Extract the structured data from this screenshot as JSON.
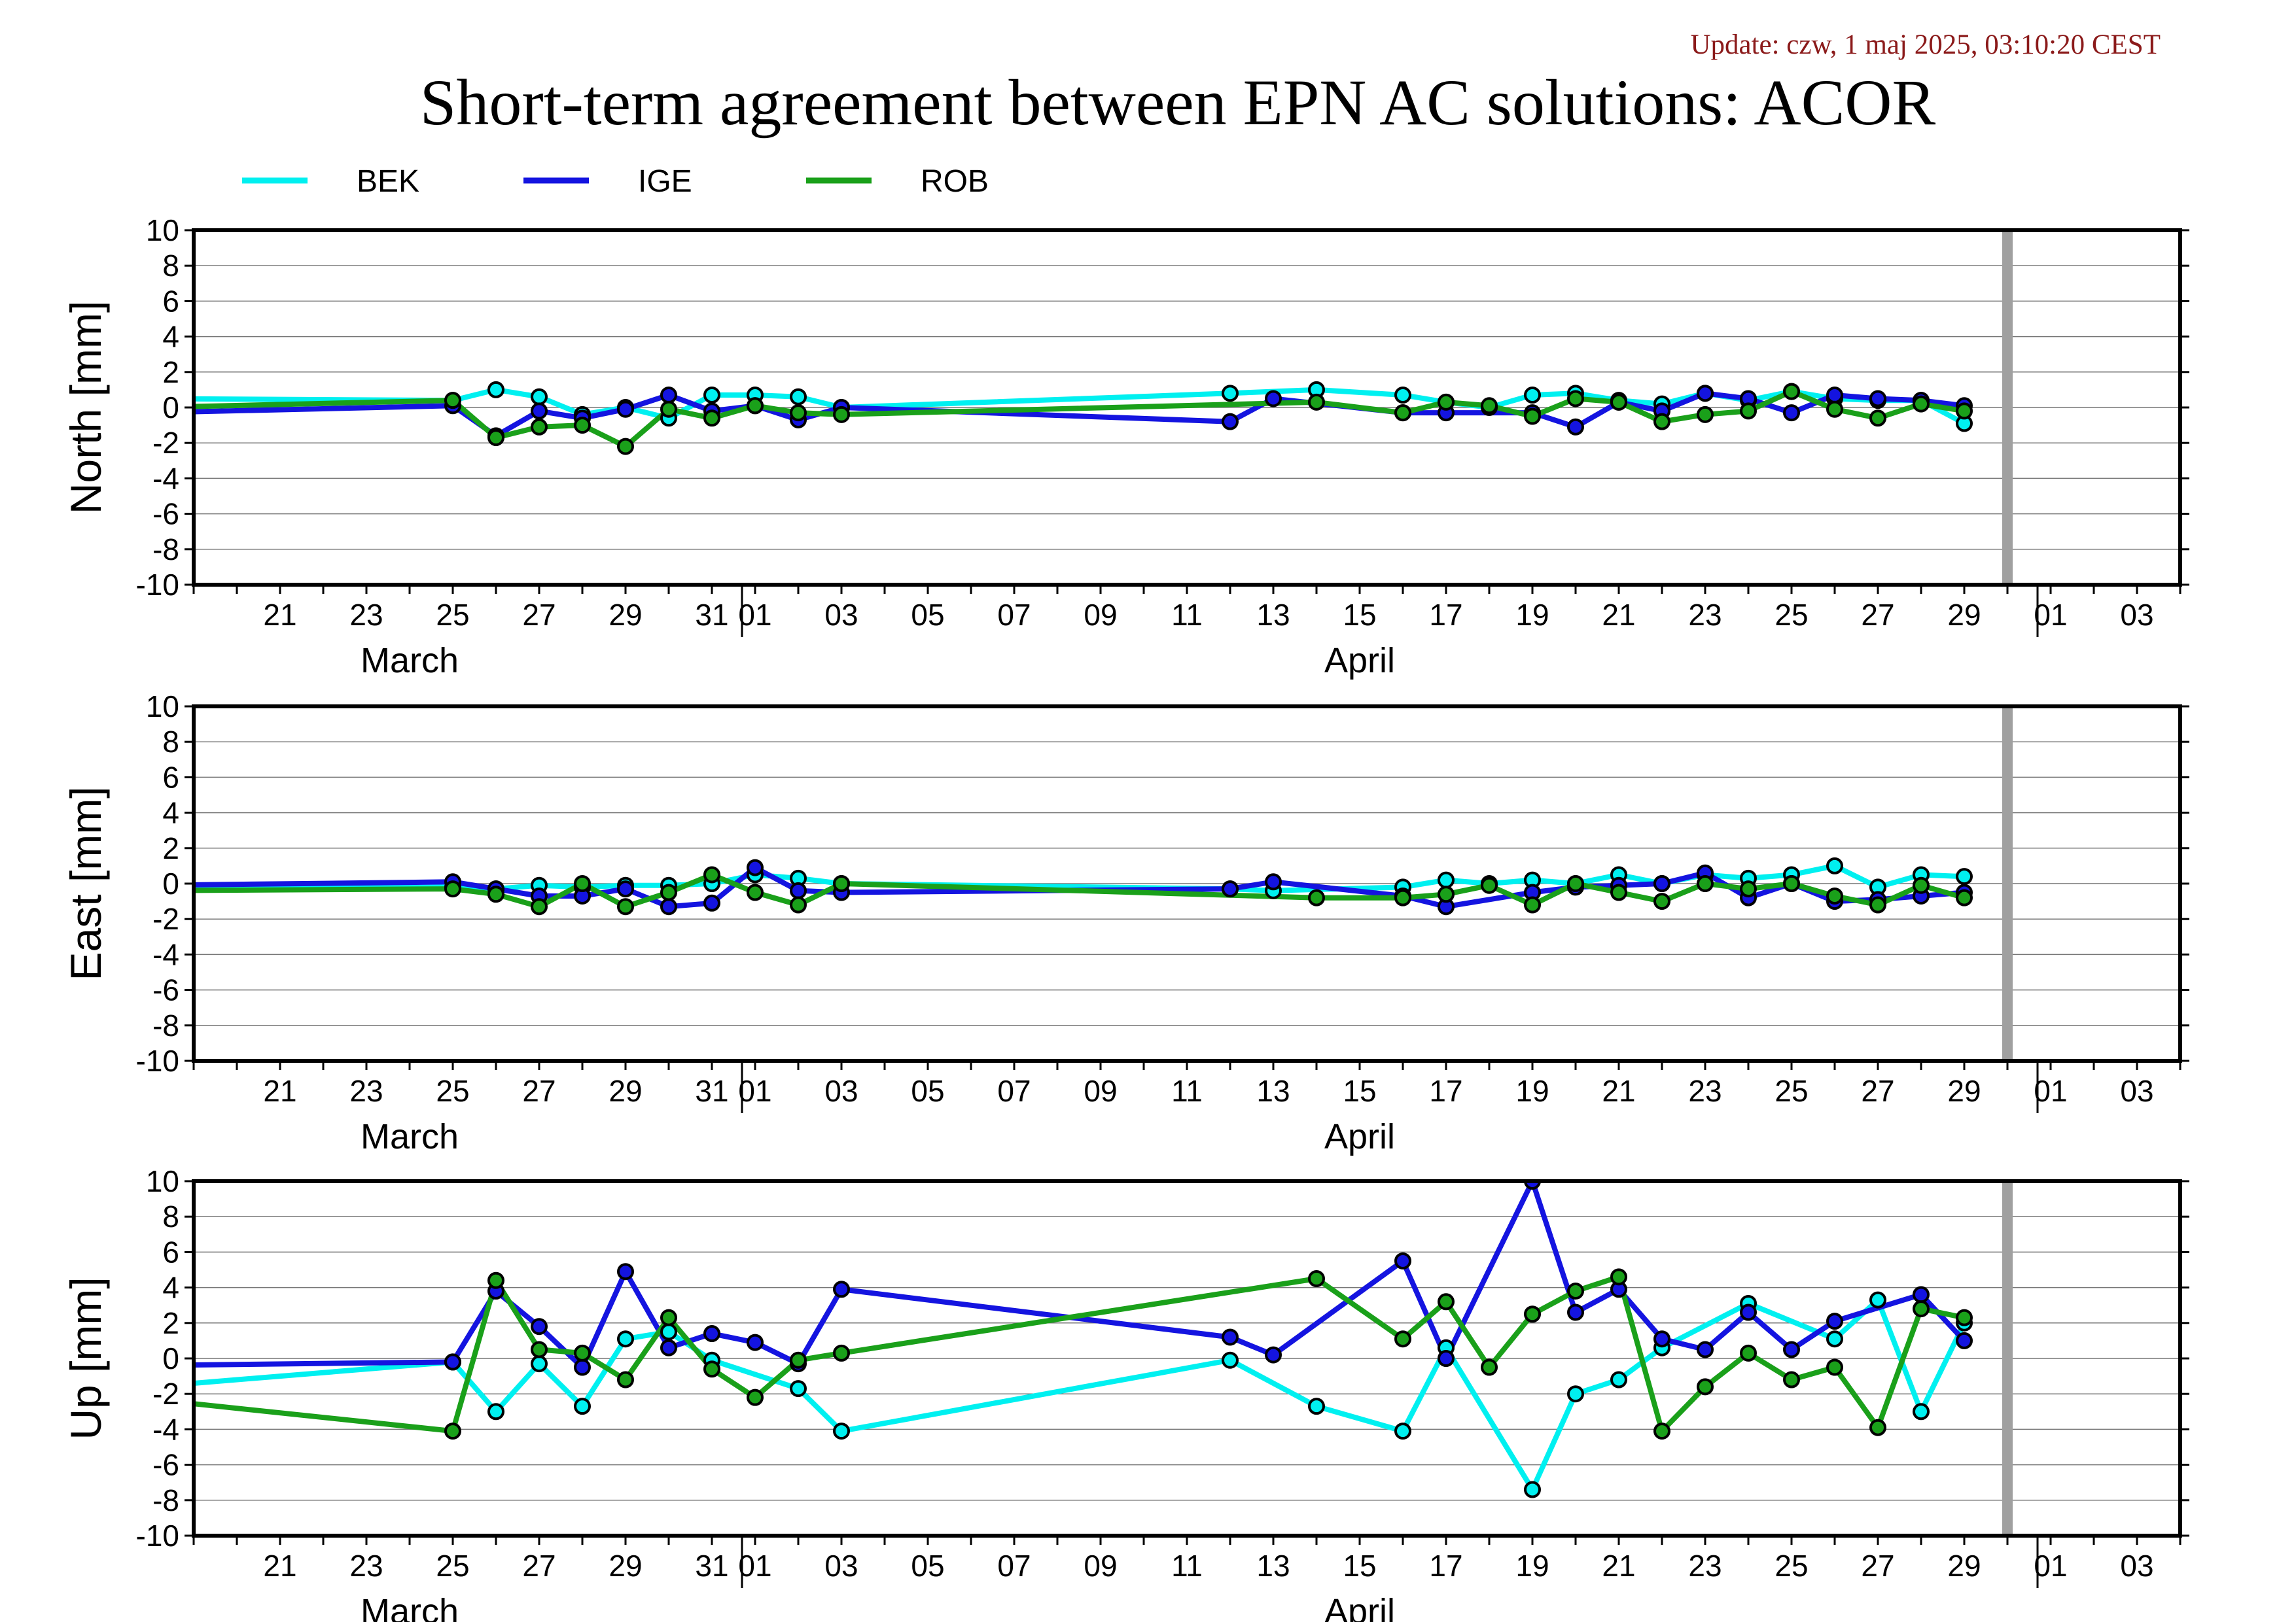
{
  "update_text": "Update: czw, 1 maj 2025, 03:10:20 CEST",
  "title": "Short-term agreement between EPN AC solutions: ACOR",
  "colors": {
    "BEK": "#00f0f0",
    "IGE": "#1414e0",
    "ROB": "#1aa01a",
    "current_day_marker": "#a0a0a0"
  },
  "chart_data": [
    {
      "type": "line",
      "panel": "north",
      "ylabel": "North [mm]",
      "ylim": [
        -10,
        10
      ],
      "yticks": [
        10,
        8,
        6,
        4,
        2,
        0,
        -2,
        -4,
        -6,
        -8,
        -10
      ],
      "xlim": [
        "2025-03-19",
        "2025-05-04"
      ],
      "x_tick_labels": [
        {
          "date": "2025-03-21",
          "label": "21"
        },
        {
          "date": "2025-03-23",
          "label": "23"
        },
        {
          "date": "2025-03-25",
          "label": "25"
        },
        {
          "date": "2025-03-27",
          "label": "27"
        },
        {
          "date": "2025-03-29",
          "label": "29"
        },
        {
          "date": "2025-03-31",
          "label": "31"
        },
        {
          "date": "2025-04-01",
          "label": "01"
        },
        {
          "date": "2025-04-03",
          "label": "03"
        },
        {
          "date": "2025-04-05",
          "label": "05"
        },
        {
          "date": "2025-04-07",
          "label": "07"
        },
        {
          "date": "2025-04-09",
          "label": "09"
        },
        {
          "date": "2025-04-11",
          "label": "11"
        },
        {
          "date": "2025-04-13",
          "label": "13"
        },
        {
          "date": "2025-04-15",
          "label": "15"
        },
        {
          "date": "2025-04-17",
          "label": "17"
        },
        {
          "date": "2025-04-19",
          "label": "19"
        },
        {
          "date": "2025-04-21",
          "label": "21"
        },
        {
          "date": "2025-04-23",
          "label": "23"
        },
        {
          "date": "2025-04-25",
          "label": "25"
        },
        {
          "date": "2025-04-27",
          "label": "27"
        },
        {
          "date": "2025-04-29",
          "label": "29"
        },
        {
          "date": "2025-05-01",
          "label": "01"
        },
        {
          "date": "2025-05-03",
          "label": "03"
        }
      ],
      "month_labels": [
        {
          "date": "2025-03-24",
          "label": "March"
        },
        {
          "date": "2025-04-15",
          "label": "April"
        }
      ],
      "month_boundaries": [
        "2025-04-01",
        "2025-05-01"
      ],
      "current_day": "2025-04-30",
      "grid": true,
      "series": [
        {
          "name": "BEK",
          "x": [
            "2025-03-18",
            "2025-03-25",
            "2025-03-26",
            "2025-03-27",
            "2025-03-28",
            "2025-03-29",
            "2025-03-30",
            "2025-03-31",
            "2025-04-01",
            "2025-04-02",
            "2025-04-03",
            "2025-04-12",
            "2025-04-14",
            "2025-04-16",
            "2025-04-17",
            "2025-04-18",
            "2025-04-19",
            "2025-04-20",
            "2025-04-21",
            "2025-04-22",
            "2025-04-23",
            "2025-04-24",
            "2025-04-25",
            "2025-04-26",
            "2025-04-27",
            "2025-04-28",
            "2025-04-29"
          ],
          "values": [
            0.5,
            0.4,
            1.0,
            0.6,
            -0.4,
            0.0,
            -0.6,
            0.7,
            0.7,
            0.6,
            0.0,
            0.8,
            1.0,
            0.7,
            0.3,
            0.0,
            0.7,
            0.8,
            0.4,
            0.2,
            0.8,
            0.4,
            0.9,
            0.5,
            0.4,
            0.4,
            -0.9
          ]
        },
        {
          "name": "IGE",
          "x": [
            "2025-03-18",
            "2025-03-25",
            "2025-03-26",
            "2025-03-27",
            "2025-03-28",
            "2025-03-29",
            "2025-03-30",
            "2025-03-31",
            "2025-04-01",
            "2025-04-02",
            "2025-04-03",
            "2025-04-12",
            "2025-04-13",
            "2025-04-16",
            "2025-04-17",
            "2025-04-19",
            "2025-04-20",
            "2025-04-21",
            "2025-04-22",
            "2025-04-23",
            "2025-04-24",
            "2025-04-25",
            "2025-04-26",
            "2025-04-27",
            "2025-04-28",
            "2025-04-29"
          ],
          "values": [
            -0.3,
            0.1,
            -1.6,
            -0.2,
            -0.6,
            -0.1,
            0.7,
            -0.2,
            0.1,
            -0.7,
            0.0,
            -0.8,
            0.5,
            -0.3,
            -0.3,
            -0.3,
            -1.1,
            0.3,
            -0.2,
            0.8,
            0.5,
            -0.3,
            0.7,
            0.5,
            0.4,
            0.1
          ]
        },
        {
          "name": "ROB",
          "x": [
            "2025-03-18",
            "2025-03-25",
            "2025-03-26",
            "2025-03-27",
            "2025-03-28",
            "2025-03-29",
            "2025-03-30",
            "2025-03-31",
            "2025-04-01",
            "2025-04-02",
            "2025-04-03",
            "2025-04-14",
            "2025-04-16",
            "2025-04-17",
            "2025-04-18",
            "2025-04-19",
            "2025-04-20",
            "2025-04-21",
            "2025-04-22",
            "2025-04-23",
            "2025-04-24",
            "2025-04-25",
            "2025-04-26",
            "2025-04-27",
            "2025-04-28",
            "2025-04-29"
          ],
          "values": [
            0.0,
            0.4,
            -1.7,
            -1.1,
            -1.0,
            -2.2,
            -0.1,
            -0.6,
            0.1,
            -0.3,
            -0.4,
            0.3,
            -0.3,
            0.3,
            0.1,
            -0.5,
            0.5,
            0.3,
            -0.8,
            -0.4,
            -0.2,
            0.9,
            -0.1,
            -0.6,
            0.2,
            -0.2
          ]
        }
      ]
    },
    {
      "type": "line",
      "panel": "east",
      "ylabel": "East [mm]",
      "ylim": [
        -10,
        10
      ],
      "yticks": [
        10,
        8,
        6,
        4,
        2,
        0,
        -2,
        -4,
        -6,
        -8,
        -10
      ],
      "xlim": [
        "2025-03-19",
        "2025-05-04"
      ],
      "x_tick_labels": [
        {
          "date": "2025-03-21",
          "label": "21"
        },
        {
          "date": "2025-03-23",
          "label": "23"
        },
        {
          "date": "2025-03-25",
          "label": "25"
        },
        {
          "date": "2025-03-27",
          "label": "27"
        },
        {
          "date": "2025-03-29",
          "label": "29"
        },
        {
          "date": "2025-03-31",
          "label": "31"
        },
        {
          "date": "2025-04-01",
          "label": "01"
        },
        {
          "date": "2025-04-03",
          "label": "03"
        },
        {
          "date": "2025-04-05",
          "label": "05"
        },
        {
          "date": "2025-04-07",
          "label": "07"
        },
        {
          "date": "2025-04-09",
          "label": "09"
        },
        {
          "date": "2025-04-11",
          "label": "11"
        },
        {
          "date": "2025-04-13",
          "label": "13"
        },
        {
          "date": "2025-04-15",
          "label": "15"
        },
        {
          "date": "2025-04-17",
          "label": "17"
        },
        {
          "date": "2025-04-19",
          "label": "19"
        },
        {
          "date": "2025-04-21",
          "label": "21"
        },
        {
          "date": "2025-04-23",
          "label": "23"
        },
        {
          "date": "2025-04-25",
          "label": "25"
        },
        {
          "date": "2025-04-27",
          "label": "27"
        },
        {
          "date": "2025-04-29",
          "label": "29"
        },
        {
          "date": "2025-05-01",
          "label": "01"
        },
        {
          "date": "2025-05-03",
          "label": "03"
        }
      ],
      "month_labels": [
        {
          "date": "2025-03-24",
          "label": "March"
        },
        {
          "date": "2025-04-15",
          "label": "April"
        }
      ],
      "month_boundaries": [
        "2025-04-01",
        "2025-05-01"
      ],
      "current_day": "2025-04-30",
      "grid": true,
      "series": [
        {
          "name": "BEK",
          "x": [
            "2025-03-18",
            "2025-03-25",
            "2025-03-26",
            "2025-03-27",
            "2025-03-28",
            "2025-03-29",
            "2025-03-30",
            "2025-03-31",
            "2025-04-01",
            "2025-04-02",
            "2025-04-03",
            "2025-04-12",
            "2025-04-13",
            "2025-04-16",
            "2025-04-17",
            "2025-04-18",
            "2025-04-19",
            "2025-04-20",
            "2025-04-21",
            "2025-04-22",
            "2025-04-23",
            "2025-04-24",
            "2025-04-25",
            "2025-04-26",
            "2025-04-27",
            "2025-04-28",
            "2025-04-29"
          ],
          "values": [
            -0.3,
            -0.2,
            -0.3,
            -0.1,
            -0.2,
            -0.1,
            -0.1,
            0.0,
            0.5,
            0.3,
            0.0,
            -0.3,
            -0.4,
            -0.2,
            0.2,
            0.0,
            0.2,
            0.0,
            0.5,
            0.0,
            0.5,
            0.3,
            0.5,
            1.0,
            -0.2,
            0.5,
            0.4
          ]
        },
        {
          "name": "IGE",
          "x": [
            "2025-03-18",
            "2025-03-25",
            "2025-03-26",
            "2025-03-27",
            "2025-03-28",
            "2025-03-29",
            "2025-03-30",
            "2025-03-31",
            "2025-04-01",
            "2025-04-02",
            "2025-04-03",
            "2025-04-12",
            "2025-04-13",
            "2025-04-16",
            "2025-04-17",
            "2025-04-19",
            "2025-04-20",
            "2025-04-21",
            "2025-04-22",
            "2025-04-23",
            "2025-04-24",
            "2025-04-25",
            "2025-04-26",
            "2025-04-27",
            "2025-04-28",
            "2025-04-29"
          ],
          "values": [
            -0.1,
            0.1,
            -0.3,
            -0.7,
            -0.7,
            -0.3,
            -1.3,
            -1.1,
            0.9,
            -0.4,
            -0.5,
            -0.3,
            0.1,
            -0.7,
            -1.3,
            -0.5,
            -0.2,
            -0.1,
            0.0,
            0.6,
            -0.8,
            0.0,
            -1.0,
            -0.9,
            -0.7,
            -0.5
          ]
        },
        {
          "name": "ROB",
          "x": [
            "2025-03-18",
            "2025-03-25",
            "2025-03-26",
            "2025-03-27",
            "2025-03-28",
            "2025-03-29",
            "2025-03-30",
            "2025-03-31",
            "2025-04-01",
            "2025-04-02",
            "2025-04-03",
            "2025-04-14",
            "2025-04-16",
            "2025-04-17",
            "2025-04-18",
            "2025-04-19",
            "2025-04-20",
            "2025-04-21",
            "2025-04-22",
            "2025-04-23",
            "2025-04-24",
            "2025-04-25",
            "2025-04-26",
            "2025-04-27",
            "2025-04-28",
            "2025-04-29"
          ],
          "values": [
            -0.4,
            -0.3,
            -0.6,
            -1.3,
            0.0,
            -1.3,
            -0.5,
            0.5,
            -0.5,
            -1.2,
            0.0,
            -0.8,
            -0.8,
            -0.6,
            -0.1,
            -1.2,
            0.0,
            -0.5,
            -1.0,
            0.0,
            -0.3,
            0.0,
            -0.7,
            -1.2,
            -0.1,
            -0.8
          ]
        }
      ]
    },
    {
      "type": "line",
      "panel": "up",
      "ylabel": "Up [mm]",
      "ylim": [
        -10,
        10
      ],
      "yticks": [
        10,
        8,
        6,
        4,
        2,
        0,
        -2,
        -4,
        -6,
        -8,
        -10
      ],
      "xlim": [
        "2025-03-19",
        "2025-05-04"
      ],
      "x_tick_labels": [
        {
          "date": "2025-03-21",
          "label": "21"
        },
        {
          "date": "2025-03-23",
          "label": "23"
        },
        {
          "date": "2025-03-25",
          "label": "25"
        },
        {
          "date": "2025-03-27",
          "label": "27"
        },
        {
          "date": "2025-03-29",
          "label": "29"
        },
        {
          "date": "2025-03-31",
          "label": "31"
        },
        {
          "date": "2025-04-01",
          "label": "01"
        },
        {
          "date": "2025-04-03",
          "label": "03"
        },
        {
          "date": "2025-04-05",
          "label": "05"
        },
        {
          "date": "2025-04-07",
          "label": "07"
        },
        {
          "date": "2025-04-09",
          "label": "09"
        },
        {
          "date": "2025-04-11",
          "label": "11"
        },
        {
          "date": "2025-04-13",
          "label": "13"
        },
        {
          "date": "2025-04-15",
          "label": "15"
        },
        {
          "date": "2025-04-17",
          "label": "17"
        },
        {
          "date": "2025-04-19",
          "label": "19"
        },
        {
          "date": "2025-04-21",
          "label": "21"
        },
        {
          "date": "2025-04-23",
          "label": "23"
        },
        {
          "date": "2025-04-25",
          "label": "25"
        },
        {
          "date": "2025-04-27",
          "label": "27"
        },
        {
          "date": "2025-04-29",
          "label": "29"
        },
        {
          "date": "2025-05-01",
          "label": "01"
        },
        {
          "date": "2025-05-03",
          "label": "03"
        }
      ],
      "month_labels": [
        {
          "date": "2025-03-24",
          "label": "March"
        },
        {
          "date": "2025-04-15",
          "label": "April"
        }
      ],
      "month_boundaries": [
        "2025-04-01",
        "2025-05-01"
      ],
      "current_day": "2025-04-30",
      "grid": true,
      "series": [
        {
          "name": "BEK",
          "x": [
            "2025-03-18",
            "2025-03-25",
            "2025-03-26",
            "2025-03-27",
            "2025-03-28",
            "2025-03-29",
            "2025-03-30",
            "2025-03-31",
            "2025-04-02",
            "2025-04-03",
            "2025-04-12",
            "2025-04-14",
            "2025-04-16",
            "2025-04-17",
            "2025-04-19",
            "2025-04-20",
            "2025-04-21",
            "2025-04-22",
            "2025-04-24",
            "2025-04-26",
            "2025-04-27",
            "2025-04-28",
            "2025-04-29"
          ],
          "values": [
            -1.6,
            -0.2,
            -3.0,
            -0.3,
            -2.7,
            1.1,
            1.5,
            -0.1,
            -1.7,
            -4.1,
            -0.1,
            -2.7,
            -4.1,
            0.6,
            -7.4,
            -2.0,
            -1.2,
            0.6,
            3.1,
            1.1,
            3.3,
            -3.0,
            2.0
          ]
        },
        {
          "name": "IGE",
          "x": [
            "2025-03-18",
            "2025-03-25",
            "2025-03-26",
            "2025-03-27",
            "2025-03-28",
            "2025-03-29",
            "2025-03-30",
            "2025-03-31",
            "2025-04-01",
            "2025-04-02",
            "2025-04-03",
            "2025-04-12",
            "2025-04-13",
            "2025-04-16",
            "2025-04-17",
            "2025-04-19",
            "2025-04-20",
            "2025-04-21",
            "2025-04-22",
            "2025-04-23",
            "2025-04-24",
            "2025-04-25",
            "2025-04-26",
            "2025-04-28",
            "2025-04-29"
          ],
          "values": [
            -0.4,
            -0.2,
            3.8,
            1.8,
            -0.5,
            4.9,
            0.6,
            1.4,
            0.9,
            -0.3,
            3.9,
            1.2,
            0.2,
            5.5,
            0.0,
            10.0,
            2.6,
            3.9,
            1.1,
            0.5,
            2.6,
            0.5,
            2.1,
            3.6,
            1.0
          ]
        },
        {
          "name": "ROB",
          "x": [
            "2025-03-18",
            "2025-03-25",
            "2025-03-26",
            "2025-03-27",
            "2025-03-28",
            "2025-03-29",
            "2025-03-30",
            "2025-03-31",
            "2025-04-01",
            "2025-04-02",
            "2025-04-03",
            "2025-04-14",
            "2025-04-16",
            "2025-04-17",
            "2025-04-18",
            "2025-04-19",
            "2025-04-20",
            "2025-04-21",
            "2025-04-22",
            "2025-04-23",
            "2025-04-24",
            "2025-04-25",
            "2025-04-26",
            "2025-04-27",
            "2025-04-28",
            "2025-04-29"
          ],
          "values": [
            -2.3,
            -4.1,
            4.4,
            0.5,
            0.3,
            -1.2,
            2.3,
            -0.6,
            -2.2,
            -0.1,
            0.3,
            4.5,
            1.1,
            3.2,
            -0.5,
            2.5,
            3.8,
            4.6,
            -4.1,
            -1.6,
            0.3,
            -1.2,
            -0.5,
            -3.9,
            2.8,
            2.3
          ]
        }
      ]
    }
  ]
}
